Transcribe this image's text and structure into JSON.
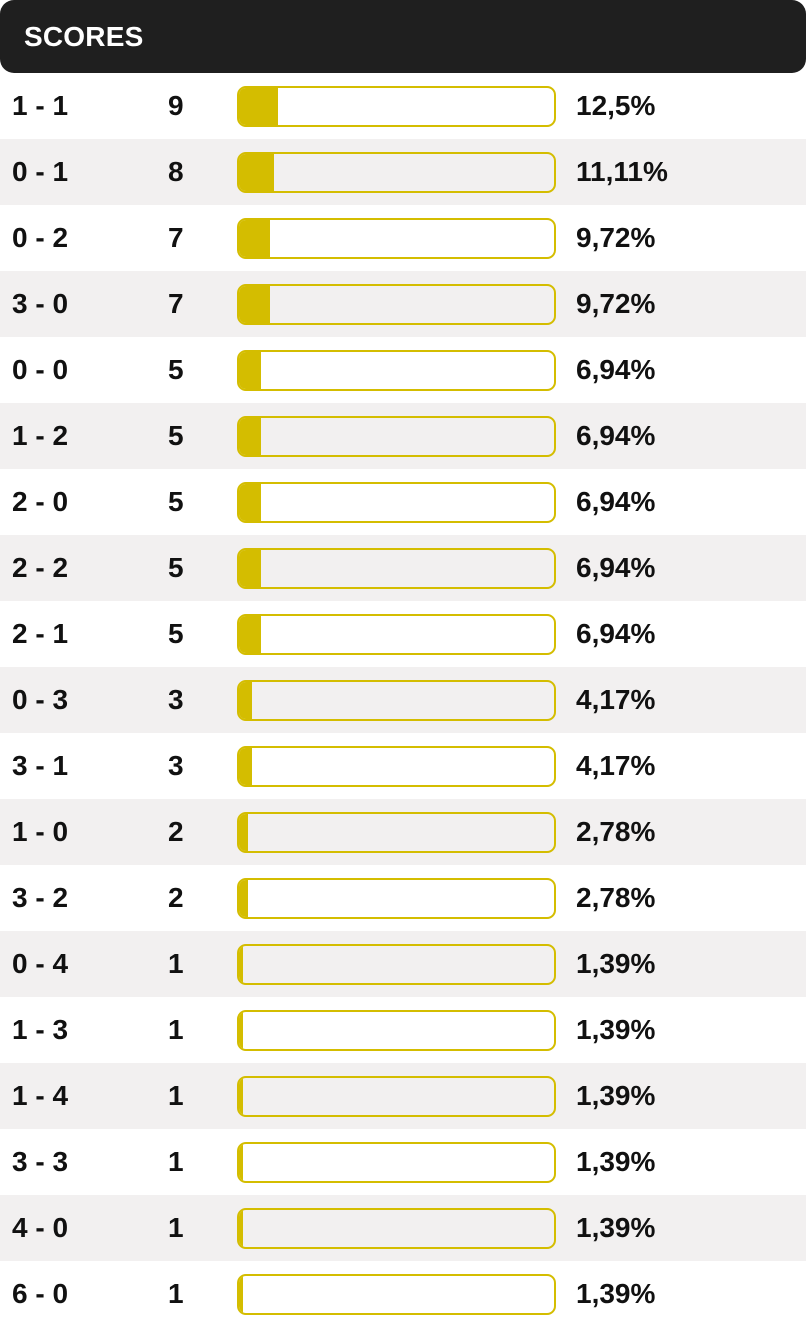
{
  "header": {
    "title": "SCORES"
  },
  "colors": {
    "header_bg": "#1f1f1f",
    "bar_accent": "#d4bd00",
    "row_alt_bg": "#f2f0f0"
  },
  "rows": [
    {
      "score": "1 - 1",
      "count": "9",
      "percent": "12,5%",
      "fraction": 0.125
    },
    {
      "score": "0 - 1",
      "count": "8",
      "percent": "11,11%",
      "fraction": 0.1111
    },
    {
      "score": "0 - 2",
      "count": "7",
      "percent": "9,72%",
      "fraction": 0.0972
    },
    {
      "score": "3 - 0",
      "count": "7",
      "percent": "9,72%",
      "fraction": 0.0972
    },
    {
      "score": "0 - 0",
      "count": "5",
      "percent": "6,94%",
      "fraction": 0.0694
    },
    {
      "score": "1 - 2",
      "count": "5",
      "percent": "6,94%",
      "fraction": 0.0694
    },
    {
      "score": "2 - 0",
      "count": "5",
      "percent": "6,94%",
      "fraction": 0.0694
    },
    {
      "score": "2 - 2",
      "count": "5",
      "percent": "6,94%",
      "fraction": 0.0694
    },
    {
      "score": "2 - 1",
      "count": "5",
      "percent": "6,94%",
      "fraction": 0.0694
    },
    {
      "score": "0 - 3",
      "count": "3",
      "percent": "4,17%",
      "fraction": 0.0417
    },
    {
      "score": "3 - 1",
      "count": "3",
      "percent": "4,17%",
      "fraction": 0.0417
    },
    {
      "score": "1 - 0",
      "count": "2",
      "percent": "2,78%",
      "fraction": 0.0278
    },
    {
      "score": "3 - 2",
      "count": "2",
      "percent": "2,78%",
      "fraction": 0.0278
    },
    {
      "score": "0 - 4",
      "count": "1",
      "percent": "1,39%",
      "fraction": 0.0139
    },
    {
      "score": "1 - 3",
      "count": "1",
      "percent": "1,39%",
      "fraction": 0.0139
    },
    {
      "score": "1 - 4",
      "count": "1",
      "percent": "1,39%",
      "fraction": 0.0139
    },
    {
      "score": "3 - 3",
      "count": "1",
      "percent": "1,39%",
      "fraction": 0.0139
    },
    {
      "score": "4 - 0",
      "count": "1",
      "percent": "1,39%",
      "fraction": 0.0139
    },
    {
      "score": "6 - 0",
      "count": "1",
      "percent": "1,39%",
      "fraction": 0.0139
    }
  ]
}
